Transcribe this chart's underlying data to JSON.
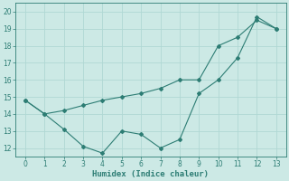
{
  "line1_x": [
    0,
    1,
    2,
    3,
    4,
    5,
    6,
    7,
    8,
    9,
    10,
    11,
    12,
    13
  ],
  "line1_y": [
    14.8,
    14.0,
    14.2,
    14.5,
    14.8,
    15.0,
    15.2,
    15.5,
    16.0,
    16.0,
    18.0,
    18.5,
    19.5,
    19.0
  ],
  "line2_x": [
    0,
    1,
    2,
    3,
    4,
    5,
    6,
    7,
    8,
    9,
    10,
    11,
    12,
    13
  ],
  "line2_y": [
    14.8,
    14.0,
    13.1,
    12.1,
    11.7,
    13.0,
    12.8,
    12.0,
    12.5,
    15.2,
    16.0,
    17.3,
    19.7,
    19.0
  ],
  "line_color": "#2d7d74",
  "background_color": "#cce9e5",
  "grid_color": "#b0d8d4",
  "xlabel": "Humidex (Indice chaleur)",
  "xlabel_fontsize": 6.5,
  "tick_fontsize": 5.5,
  "ylim": [
    11.5,
    20.5
  ],
  "xlim": [
    -0.5,
    13.5
  ],
  "yticks": [
    12,
    13,
    14,
    15,
    16,
    17,
    18,
    19,
    20
  ],
  "xticks": [
    0,
    1,
    2,
    3,
    4,
    5,
    6,
    7,
    8,
    9,
    10,
    11,
    12,
    13
  ]
}
